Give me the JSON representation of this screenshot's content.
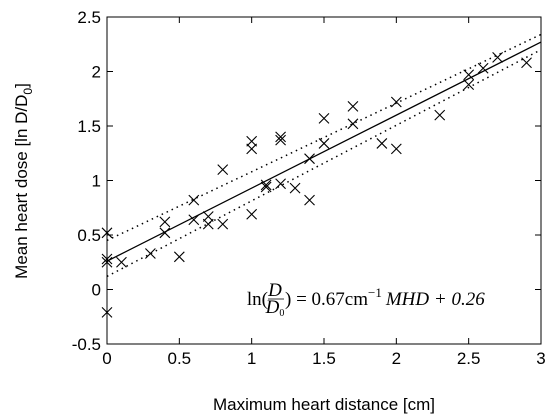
{
  "chart_data": {
    "type": "scatter",
    "title": "",
    "xlabel": "Maximum heart distance [cm]",
    "ylabel": "Mean heart dose [ln D/D",
    "ylabel_sub": "0",
    "ylabel_close": "]",
    "xlim": [
      0,
      3
    ],
    "ylim": [
      -0.5,
      2.5
    ],
    "xticks": [
      "0",
      "0.5",
      "1",
      "1.5",
      "2",
      "2.5",
      "3"
    ],
    "yticks": [
      "-0.5",
      "0",
      "0.5",
      "1",
      "1.5",
      "2",
      "2.5"
    ],
    "grid": false,
    "legend": "none",
    "equation": {
      "lhs_fn": "ln(",
      "num": "D",
      "den": "D",
      "den_sub": "0",
      "rhs": ") = 0.67cm",
      "exp": "−1",
      "tail": "MHD + 0.26"
    },
    "points": [
      {
        "x": 0.0,
        "y": 0.52
      },
      {
        "x": 0.0,
        "y": 0.28
      },
      {
        "x": 0.0,
        "y": 0.25
      },
      {
        "x": 0.0,
        "y": -0.21
      },
      {
        "x": 0.1,
        "y": 0.25
      },
      {
        "x": 0.3,
        "y": 0.33
      },
      {
        "x": 0.4,
        "y": 0.52
      },
      {
        "x": 0.4,
        "y": 0.62
      },
      {
        "x": 0.5,
        "y": 0.3
      },
      {
        "x": 0.6,
        "y": 0.64
      },
      {
        "x": 0.6,
        "y": 0.82
      },
      {
        "x": 0.7,
        "y": 0.6
      },
      {
        "x": 0.7,
        "y": 0.67
      },
      {
        "x": 0.8,
        "y": 0.6
      },
      {
        "x": 0.8,
        "y": 1.1
      },
      {
        "x": 1.0,
        "y": 0.69
      },
      {
        "x": 1.0,
        "y": 1.29
      },
      {
        "x": 1.0,
        "y": 1.36
      },
      {
        "x": 1.1,
        "y": 0.96
      },
      {
        "x": 1.1,
        "y": 0.94
      },
      {
        "x": 1.2,
        "y": 0.97
      },
      {
        "x": 1.2,
        "y": 1.37
      },
      {
        "x": 1.2,
        "y": 1.4
      },
      {
        "x": 1.3,
        "y": 0.93
      },
      {
        "x": 1.4,
        "y": 0.82
      },
      {
        "x": 1.4,
        "y": 1.2
      },
      {
        "x": 1.5,
        "y": 1.57
      },
      {
        "x": 1.5,
        "y": 1.34
      },
      {
        "x": 1.7,
        "y": 1.52
      },
      {
        "x": 1.7,
        "y": 1.68
      },
      {
        "x": 1.9,
        "y": 1.34
      },
      {
        "x": 2.0,
        "y": 1.29
      },
      {
        "x": 2.0,
        "y": 1.72
      },
      {
        "x": 2.3,
        "y": 1.6
      },
      {
        "x": 2.5,
        "y": 1.97
      },
      {
        "x": 2.5,
        "y": 1.88
      },
      {
        "x": 2.6,
        "y": 2.03
      },
      {
        "x": 2.7,
        "y": 2.13
      },
      {
        "x": 2.9,
        "y": 2.08
      }
    ],
    "fit_line": {
      "slope": 0.67,
      "intercept": 0.26
    },
    "ci_upper": {
      "x": [
        0,
        3
      ],
      "y": [
        0.45,
        2.34
      ]
    },
    "ci_lower": {
      "x": [
        0,
        3
      ],
      "y": [
        0.12,
        2.2
      ]
    }
  }
}
